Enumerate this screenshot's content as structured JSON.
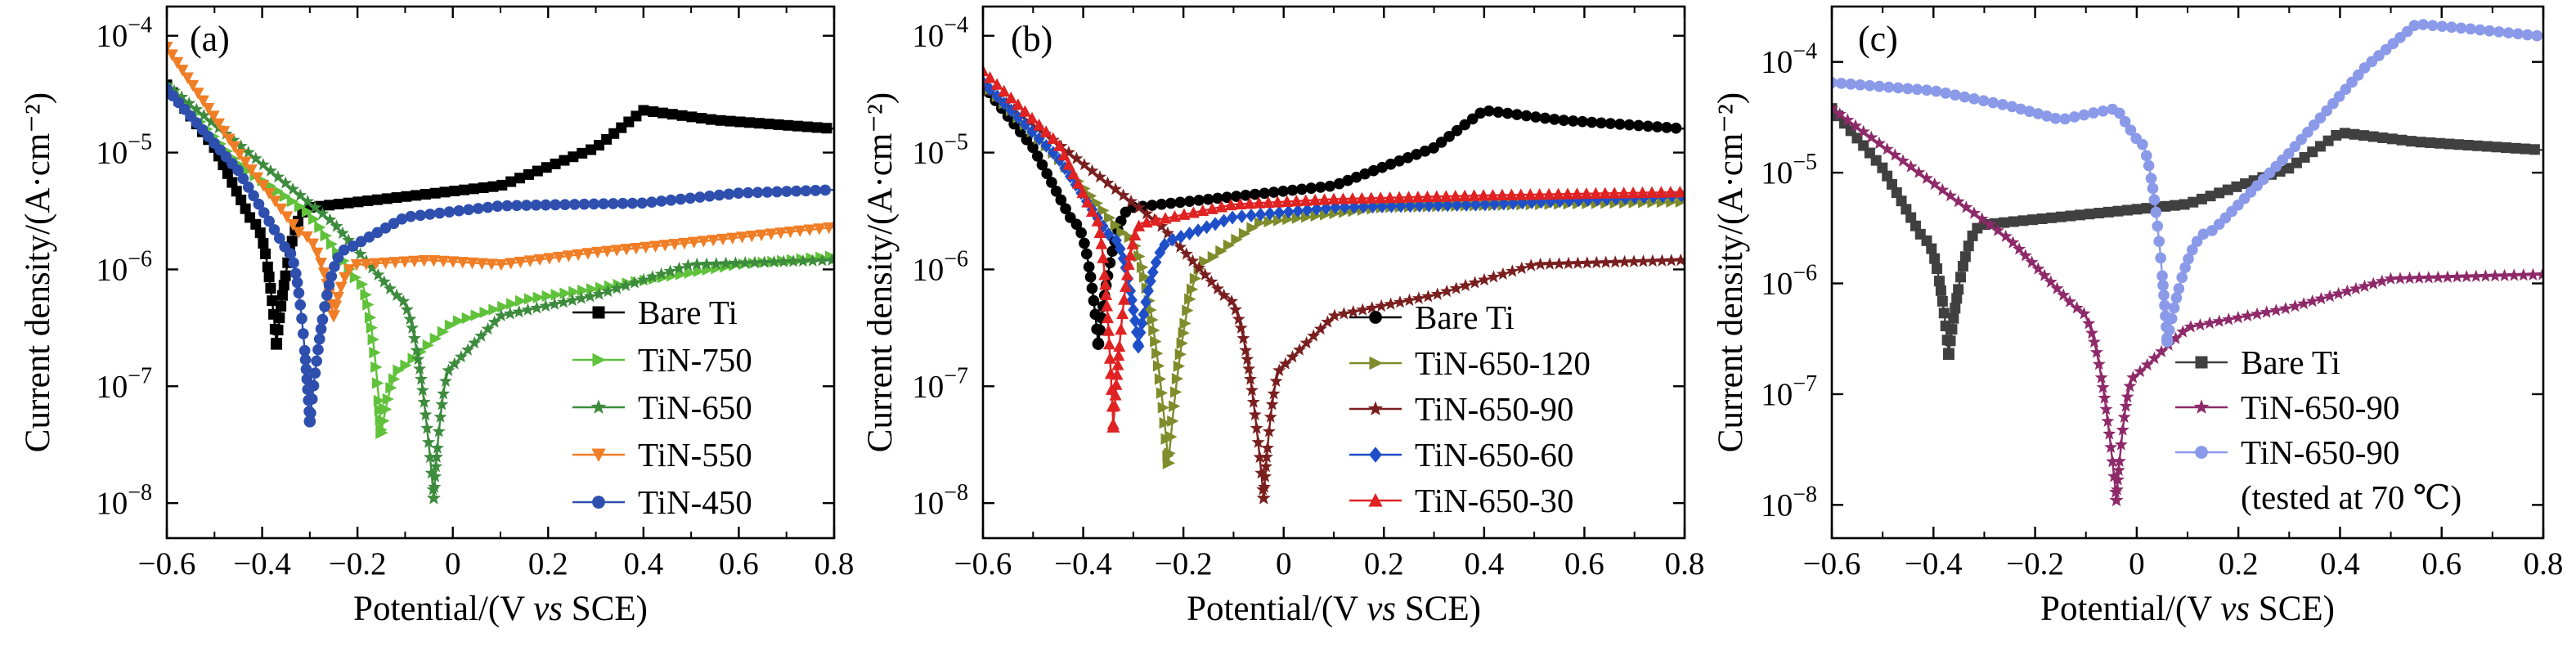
{
  "chart_data": [
    {
      "type": "line",
      "panel_label": "(a)",
      "xlabel": "Potential/(V vs SCE)",
      "ylabel": "Current density/(A·cm⁻²)",
      "xlim": [
        -0.6,
        0.8
      ],
      "ylim_log10": [
        -8.3,
        -3.75
      ],
      "yscale": "log",
      "xticks": [
        "−0.6",
        "−0.4",
        "−0.2",
        "0",
        "0.2",
        "0.4",
        "0.6",
        "0.8"
      ],
      "legend_position": "bottom-right",
      "series": [
        {
          "name": "Bare Ti",
          "color": "#000000",
          "marker": "square",
          "ecorr": -0.37,
          "icorr": 2.3e-07,
          "cathodic": [
            [
              -0.6,
              3.8e-05
            ],
            [
              -0.5,
              1.1e-05
            ],
            [
              -0.42,
              2.5e-06
            ]
          ],
          "anodic": [
            [
              -0.3,
              3.4e-06
            ],
            [
              -0.1,
              4.2e-06
            ],
            [
              0.1,
              5.2e-06
            ],
            [
              0.3,
              1.1e-05
            ],
            [
              0.4,
              2.3e-05
            ],
            [
              0.55,
              1.9e-05
            ],
            [
              0.8,
              1.6e-05
            ]
          ]
        },
        {
          "name": "TiN-750",
          "color": "#5fc23a",
          "marker": "triangle-right",
          "ecorr": -0.15,
          "icorr": 4e-08,
          "cathodic": [
            [
              -0.6,
              3.8e-05
            ],
            [
              -0.45,
              8e-06
            ],
            [
              -0.3,
              3e-06
            ],
            [
              -0.2,
              8e-07
            ]
          ],
          "anodic": [
            [
              -0.1,
              1.5e-07
            ],
            [
              0.0,
              3.5e-07
            ],
            [
              0.15,
              5.5e-07
            ],
            [
              0.4,
              8e-07
            ],
            [
              0.6,
              1.1e-06
            ],
            [
              0.8,
              1.3e-06
            ]
          ]
        },
        {
          "name": "TiN-650",
          "color": "#3d8b3d",
          "marker": "star",
          "ecorr": -0.04,
          "icorr": 1.1e-08,
          "cathodic": [
            [
              -0.6,
              3.8e-05
            ],
            [
              -0.4,
              8e-06
            ],
            [
              -0.25,
              2.5e-06
            ],
            [
              -0.12,
              6e-07
            ]
          ],
          "anodic": [
            [
              0.0,
              1.5e-07
            ],
            [
              0.1,
              4e-07
            ],
            [
              0.3,
              6e-07
            ],
            [
              0.5,
              1.1e-06
            ],
            [
              0.8,
              1.2e-06
            ]
          ]
        },
        {
          "name": "TiN-550",
          "color": "#f07e26",
          "marker": "triangle-down",
          "ecorr": -0.25,
          "icorr": 4e-07,
          "cathodic": [
            [
              -0.6,
              8e-05
            ],
            [
              -0.45,
              1e-05
            ],
            [
              -0.32,
              2e-06
            ]
          ],
          "anodic": [
            [
              -0.2,
              1.1e-06
            ],
            [
              -0.05,
              1.2e-06
            ],
            [
              0.1,
              1.1e-06
            ],
            [
              0.3,
              1.4e-06
            ],
            [
              0.5,
              1.7e-06
            ],
            [
              0.8,
              2.3e-06
            ]
          ]
        },
        {
          "name": "TiN-450",
          "color": "#2e4fae",
          "marker": "circle",
          "ecorr": -0.3,
          "icorr": 5e-08,
          "cathodic": [
            [
              -0.6,
              3.5e-05
            ],
            [
              -0.45,
              7e-06
            ],
            [
              -0.35,
              1.5e-06
            ]
          ],
          "anodic": [
            [
              -0.22,
              1.5e-06
            ],
            [
              -0.1,
              2.8e-06
            ],
            [
              0.1,
              3.5e-06
            ],
            [
              0.4,
              3.7e-06
            ],
            [
              0.6,
              4.5e-06
            ],
            [
              0.8,
              4.8e-06
            ]
          ]
        }
      ]
    },
    {
      "type": "line",
      "panel_label": "(b)",
      "xlabel": "Potential/(V vs SCE)",
      "ylabel": "Current density/(A·cm⁻²)",
      "xlim": [
        -0.6,
        0.8
      ],
      "ylim_log10": [
        -8.3,
        -3.75
      ],
      "yscale": "log",
      "xticks": [
        "−0.6",
        "−0.4",
        "−0.2",
        "0",
        "0.2",
        "0.4",
        "0.6",
        "0.8"
      ],
      "legend_position": "bottom-right",
      "series": [
        {
          "name": "Bare Ti",
          "color": "#000000",
          "marker": "circle",
          "ecorr": -0.37,
          "icorr": 2.3e-07,
          "cathodic": [
            [
              -0.6,
              3.8e-05
            ],
            [
              -0.5,
              1.1e-05
            ],
            [
              -0.42,
              2.5e-06
            ]
          ],
          "anodic": [
            [
              -0.3,
              3.4e-06
            ],
            [
              -0.1,
              4.2e-06
            ],
            [
              0.1,
              5.2e-06
            ],
            [
              0.3,
              1.1e-05
            ],
            [
              0.4,
              2.3e-05
            ],
            [
              0.55,
              1.9e-05
            ],
            [
              0.8,
              1.6e-05
            ]
          ]
        },
        {
          "name": "TiN-650-120",
          "color": "#7e8c2b",
          "marker": "triangle-right",
          "ecorr": -0.23,
          "icorr": 2.2e-08,
          "cathodic": [
            [
              -0.6,
              4e-05
            ],
            [
              -0.45,
              9e-06
            ],
            [
              -0.32,
              2e-06
            ]
          ],
          "anodic": [
            [
              -0.15,
              1.2e-06
            ],
            [
              -0.05,
              2.5e-06
            ],
            [
              0.2,
              3.4e-06
            ],
            [
              0.5,
              3.6e-06
            ],
            [
              0.8,
              3.8e-06
            ]
          ]
        },
        {
          "name": "TiN-650-90",
          "color": "#7a1f1f",
          "marker": "star",
          "ecorr": -0.04,
          "icorr": 1.1e-08,
          "cathodic": [
            [
              -0.6,
              3.8e-05
            ],
            [
              -0.4,
              8e-06
            ],
            [
              -0.25,
              2.5e-06
            ],
            [
              -0.12,
              6e-07
            ]
          ],
          "anodic": [
            [
              0.0,
              1.5e-07
            ],
            [
              0.1,
              4e-07
            ],
            [
              0.3,
              6e-07
            ],
            [
              0.5,
              1.1e-06
            ],
            [
              0.8,
              1.2e-06
            ]
          ]
        },
        {
          "name": "TiN-650-60",
          "color": "#1f4fc8",
          "marker": "diamond",
          "ecorr": -0.29,
          "icorr": 2.2e-07,
          "cathodic": [
            [
              -0.6,
              4e-05
            ],
            [
              -0.45,
              9e-06
            ],
            [
              -0.35,
              2e-06
            ]
          ],
          "anodic": [
            [
              -0.22,
              1.8e-06
            ],
            [
              -0.1,
              2.8e-06
            ],
            [
              0.1,
              3.4e-06
            ],
            [
              0.4,
              3.6e-06
            ],
            [
              0.8,
              4.3e-06
            ]
          ]
        },
        {
          "name": "TiN-650-30",
          "color": "#e02222",
          "marker": "triangle-up",
          "ecorr": -0.34,
          "icorr": 4.5e-08,
          "cathodic": [
            [
              -0.6,
              5e-05
            ],
            [
              -0.45,
              1.2e-05
            ],
            [
              -0.38,
              3e-06
            ]
          ],
          "anodic": [
            [
              -0.28,
              2.5e-06
            ],
            [
              -0.1,
              3.6e-06
            ],
            [
              0.1,
              4e-06
            ],
            [
              0.4,
              4.3e-06
            ],
            [
              0.8,
              4.6e-06
            ]
          ]
        }
      ]
    },
    {
      "type": "line",
      "panel_label": "(c)",
      "xlabel": "Potential/(V vs SCE)",
      "ylabel": "Current density/(A·cm⁻²)",
      "xlim": [
        -0.6,
        0.8
      ],
      "ylim_log10": [
        -8.3,
        -3.5
      ],
      "yscale": "log",
      "xticks": [
        "−0.6",
        "−0.4",
        "−0.2",
        "0",
        "0.2",
        "0.4",
        "0.6",
        "0.8"
      ],
      "legend_position": "bottom-right",
      "legend_note": "(tested at 70 ℃)",
      "series": [
        {
          "name": "Bare Ti",
          "color": "#404040",
          "marker": "square",
          "ecorr": -0.37,
          "icorr": 2.3e-07,
          "cathodic": [
            [
              -0.6,
              3.8e-05
            ],
            [
              -0.5,
              1.1e-05
            ],
            [
              -0.42,
              2.5e-06
            ]
          ],
          "anodic": [
            [
              -0.3,
              3.4e-06
            ],
            [
              -0.1,
              4.2e-06
            ],
            [
              0.1,
              5.2e-06
            ],
            [
              0.3,
              1.1e-05
            ],
            [
              0.4,
              2.3e-05
            ],
            [
              0.55,
              1.9e-05
            ],
            [
              0.8,
              1.6e-05
            ]
          ]
        },
        {
          "name": "TiN-650-90",
          "color": "#8e2a6a",
          "marker": "star",
          "ecorr": -0.04,
          "icorr": 1.1e-08,
          "cathodic": [
            [
              -0.6,
              3.8e-05
            ],
            [
              -0.4,
              8e-06
            ],
            [
              -0.25,
              2.5e-06
            ],
            [
              -0.12,
              6e-07
            ]
          ],
          "anodic": [
            [
              0.0,
              1.5e-07
            ],
            [
              0.1,
              4e-07
            ],
            [
              0.3,
              6e-07
            ],
            [
              0.5,
              1.1e-06
            ],
            [
              0.8,
              1.2e-06
            ]
          ]
        },
        {
          "name": "TiN-650-90",
          "color": "#8a9ae8",
          "marker": "circle",
          "ecorr": 0.06,
          "icorr": 3e-07,
          "cathodic": [
            [
              -0.6,
              6.5e-05
            ],
            [
              -0.4,
              5.5e-05
            ],
            [
              -0.25,
              4e-05
            ],
            [
              -0.15,
              3e-05
            ],
            [
              -0.08,
              3.5e-05
            ],
            [
              -0.04,
              3.8e-05
            ],
            [
              0.0,
              2e-05
            ]
          ],
          "anodic": [
            [
              0.15,
              3e-06
            ],
            [
              0.3,
              1.5e-05
            ],
            [
              0.45,
              9e-05
            ],
            [
              0.55,
              0.00022
            ],
            [
              0.65,
              0.0002
            ],
            [
              0.8,
              0.00017
            ]
          ]
        }
      ]
    }
  ]
}
